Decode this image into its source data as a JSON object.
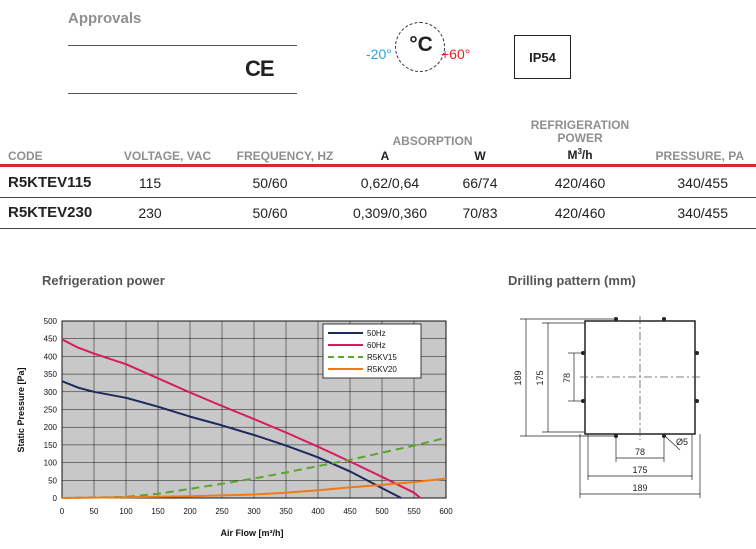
{
  "approvals": {
    "title": "Approvals",
    "ce_mark": "CE"
  },
  "temperature": {
    "unit": "°C",
    "min": "-20°",
    "max": "+60°"
  },
  "protection": {
    "rating": "IP54"
  },
  "spec_table": {
    "headers": {
      "code": "CODE",
      "voltage": "VOLTAGE, VAC",
      "frequency": "FREQUENCY, HZ",
      "absorption": "ABSORPTION",
      "absorption_a": "A",
      "absorption_w": "W",
      "refrigeration_line1": "REFRIGERATION",
      "refrigeration_line2": "POWER",
      "refrigeration_unit": "M",
      "refrigeration_unit_sup": "3",
      "refrigeration_unit_tail": "/h",
      "pressure": "PRESSURE, PA"
    },
    "rows": [
      {
        "code": "R5KTEV115",
        "voltage": "115",
        "frequency": "50/60",
        "amps": "0,62/0,64",
        "watts": "66/74",
        "refrigeration": "420/460",
        "pressure": "340/455"
      },
      {
        "code": "R5KTEV230",
        "voltage": "230",
        "frequency": "50/60",
        "amps": "0,309/0,360",
        "watts": "70/83",
        "refrigeration": "420/460",
        "pressure": "340/455"
      }
    ]
  },
  "chart_section_title": "Refrigeration power",
  "drilling_section_title": "Drilling pattern (mm)",
  "chart_data": {
    "type": "line",
    "xlabel": "Air Flow [m³/h]",
    "ylabel": "Static Pressure [Pa]",
    "xlim": [
      0,
      600
    ],
    "ylim": [
      0,
      500
    ],
    "x_ticks": [
      0,
      50,
      100,
      150,
      200,
      250,
      300,
      350,
      400,
      450,
      500,
      550,
      600
    ],
    "y_ticks": [
      0,
      50,
      100,
      150,
      200,
      250,
      300,
      350,
      400,
      450,
      500
    ],
    "grid": true,
    "legend_position": "top-right",
    "series": [
      {
        "name": "50Hz",
        "color": "#1f2a5c",
        "style": "solid",
        "x": [
          0,
          25,
          50,
          100,
          150,
          200,
          250,
          300,
          350,
          400,
          450,
          500,
          530
        ],
        "y": [
          330,
          312,
          300,
          283,
          258,
          230,
          205,
          178,
          148,
          115,
          75,
          28,
          0
        ]
      },
      {
        "name": "60Hz",
        "color": "#d81b60",
        "style": "solid",
        "x": [
          0,
          25,
          50,
          75,
          100,
          150,
          200,
          250,
          300,
          350,
          400,
          450,
          500,
          550,
          560
        ],
        "y": [
          448,
          425,
          408,
          393,
          378,
          338,
          298,
          260,
          223,
          185,
          145,
          103,
          60,
          15,
          0
        ]
      },
      {
        "name": "R5KV15",
        "color": "#5aa52c",
        "style": "dashed",
        "x": [
          0,
          100,
          150,
          200,
          250,
          300,
          350,
          400,
          450,
          500,
          550,
          600
        ],
        "y": [
          0,
          3,
          12,
          26,
          40,
          55,
          72,
          90,
          108,
          128,
          148,
          170
        ]
      },
      {
        "name": "R5KV20",
        "color": "#f07a16",
        "style": "solid",
        "x": [
          0,
          100,
          200,
          300,
          350,
          400,
          450,
          500,
          550,
          600
        ],
        "y": [
          0,
          2,
          5,
          10,
          15,
          22,
          30,
          37,
          45,
          55
        ]
      }
    ]
  },
  "drilling": {
    "dim_height_outer": "189",
    "dim_height_mid": "175",
    "dim_height_inner": "78",
    "dim_width_inner": "78",
    "dim_width_mid": "175",
    "dim_width_outer": "189",
    "hole_diameter": "Ø5"
  }
}
